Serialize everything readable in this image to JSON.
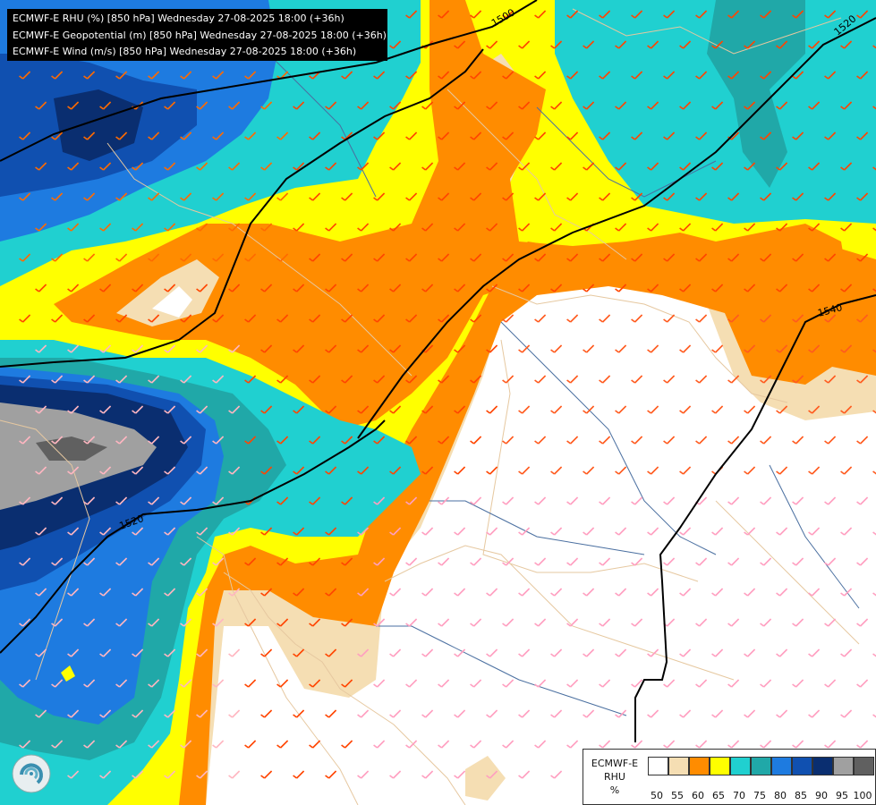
{
  "title_lines": [
    "ECMWF-E RHU (%) [850 hPa] Wednesday 27-08-2025 18:00 (+36h)",
    "ECMWF-E Geopotential (m) [850 hPa] Wednesday 27-08-2025 18:00 (+36h)",
    "ECMWF-E Wind (m/s) [850 hPa] Wednesday 27-08-2025 18:00 (+36h)"
  ],
  "contour_labels": [
    "1500",
    "1520",
    "1540",
    "1520"
  ],
  "legend": {
    "line1": "ECMWF-E",
    "line2": "RHU",
    "unit": "%",
    "ticks": [
      "50",
      "55",
      "60",
      "65",
      "70",
      "75",
      "80",
      "85",
      "90",
      "95",
      "100"
    ],
    "colors": [
      "#ffffff",
      "#f5deb3",
      "#ff8c00",
      "#ffff00",
      "#20d0d0",
      "#20a8a8",
      "#1e7be0",
      "#1050b0",
      "#0a2e70",
      "#a0a0a0",
      "#606060"
    ]
  },
  "palette": {
    "white": "#ffffff",
    "tan": "#f5deb3",
    "orange": "#ff8c00",
    "yellow": "#ffff00",
    "cyan": "#20d0d0",
    "teal": "#20a8a8",
    "blue": "#1e7be0",
    "dkblue": "#1050b0",
    "navy": "#0a2e70",
    "gray": "#a0a0a0",
    "dkgray": "#606060"
  },
  "logo_icon": "ecmwf-swirl-icon"
}
